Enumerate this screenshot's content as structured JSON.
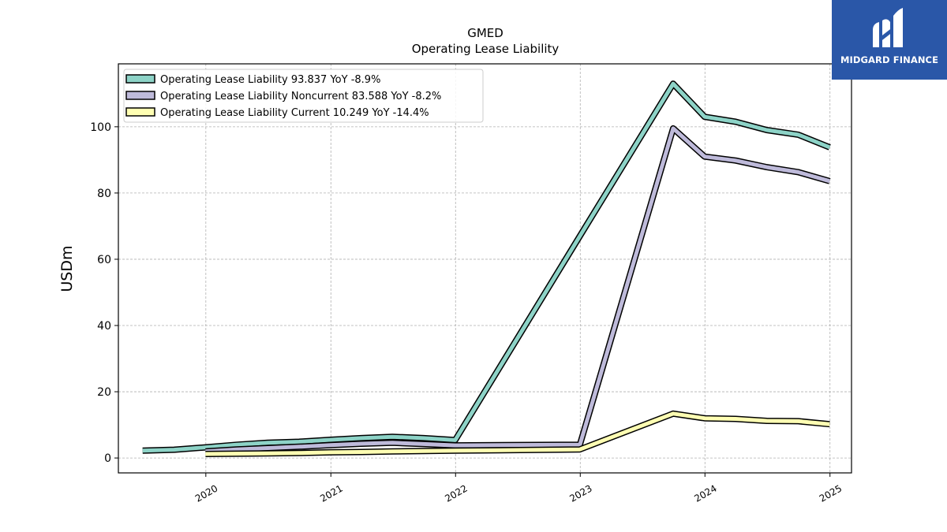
{
  "brand": {
    "name": "MIDGARD FINANCE",
    "bg": "#2a57a8"
  },
  "chart_data": {
    "type": "line",
    "title": "GMED",
    "subtitle": "Operating Lease Liability",
    "ylabel": "USDm",
    "xlabel": "",
    "ylim": [
      -4.5,
      119
    ],
    "xlim": [
      "2019-04-20",
      "2025-03-05"
    ],
    "yticks": [
      0,
      20,
      40,
      60,
      80,
      100
    ],
    "xticks": [
      "2020",
      "2021",
      "2022",
      "2023",
      "2024",
      "2025"
    ],
    "grid": true,
    "legend_position": "top-left",
    "series": [
      {
        "name": "Operating Lease Liability",
        "legend": "Operating Lease Liability  93.837 YoY -8.9%",
        "color": "#8dd3c7",
        "points": [
          [
            "2019-06-30",
            2.2
          ],
          [
            "2019-09-30",
            2.5
          ],
          [
            "2019-12-31",
            3.2
          ],
          [
            "2020-03-31",
            4.0
          ],
          [
            "2020-06-30",
            4.6
          ],
          [
            "2020-09-30",
            4.9
          ],
          [
            "2020-12-31",
            5.5
          ],
          [
            "2021-03-31",
            6.0
          ],
          [
            "2021-06-30",
            6.4
          ],
          [
            "2021-09-30",
            6.0
          ],
          [
            "2021-12-31",
            5.4
          ],
          [
            "2022-12-31",
            67.0
          ],
          [
            "2023-09-30",
            113.0
          ],
          [
            "2023-12-31",
            103.0
          ],
          [
            "2024-03-31",
            101.5
          ],
          [
            "2024-06-30",
            99.0
          ],
          [
            "2024-09-30",
            97.6
          ],
          [
            "2024-12-31",
            93.8
          ]
        ]
      },
      {
        "name": "Operating Lease Liability Noncurrent",
        "legend": "Operating Lease Liability Noncurrent  83.588 YoY -8.2%",
        "color": "#bebada",
        "points": [
          [
            "2019-12-31",
            2.0
          ],
          [
            "2020-03-31",
            2.6
          ],
          [
            "2020-06-30",
            3.0
          ],
          [
            "2020-09-30",
            3.4
          ],
          [
            "2020-12-31",
            3.9
          ],
          [
            "2021-03-31",
            4.3
          ],
          [
            "2021-06-30",
            4.6
          ],
          [
            "2021-09-30",
            4.2
          ],
          [
            "2021-12-31",
            3.8
          ],
          [
            "2022-12-31",
            4.0
          ],
          [
            "2023-09-30",
            99.5
          ],
          [
            "2023-12-31",
            91.0
          ],
          [
            "2024-03-31",
            89.8
          ],
          [
            "2024-06-30",
            87.8
          ],
          [
            "2024-09-30",
            86.3
          ],
          [
            "2024-12-31",
            83.6
          ]
        ]
      },
      {
        "name": "Operating Lease Liability Current",
        "legend": "Operating Lease Liability Current  10.249 YoY -14.4%",
        "color": "#ffffb3",
        "points": [
          [
            "2019-12-31",
            1.2
          ],
          [
            "2020-03-31",
            1.3
          ],
          [
            "2020-06-30",
            1.4
          ],
          [
            "2020-09-30",
            1.5
          ],
          [
            "2020-12-31",
            1.7
          ],
          [
            "2021-03-31",
            1.8
          ],
          [
            "2021-06-30",
            2.0
          ],
          [
            "2021-09-30",
            2.1
          ],
          [
            "2021-12-31",
            2.2
          ],
          [
            "2022-12-31",
            2.6
          ],
          [
            "2023-09-30",
            13.4
          ],
          [
            "2023-12-31",
            12.0
          ],
          [
            "2024-03-31",
            11.8
          ],
          [
            "2024-06-30",
            11.2
          ],
          [
            "2024-09-30",
            11.1
          ],
          [
            "2024-12-31",
            10.2
          ]
        ]
      }
    ]
  }
}
